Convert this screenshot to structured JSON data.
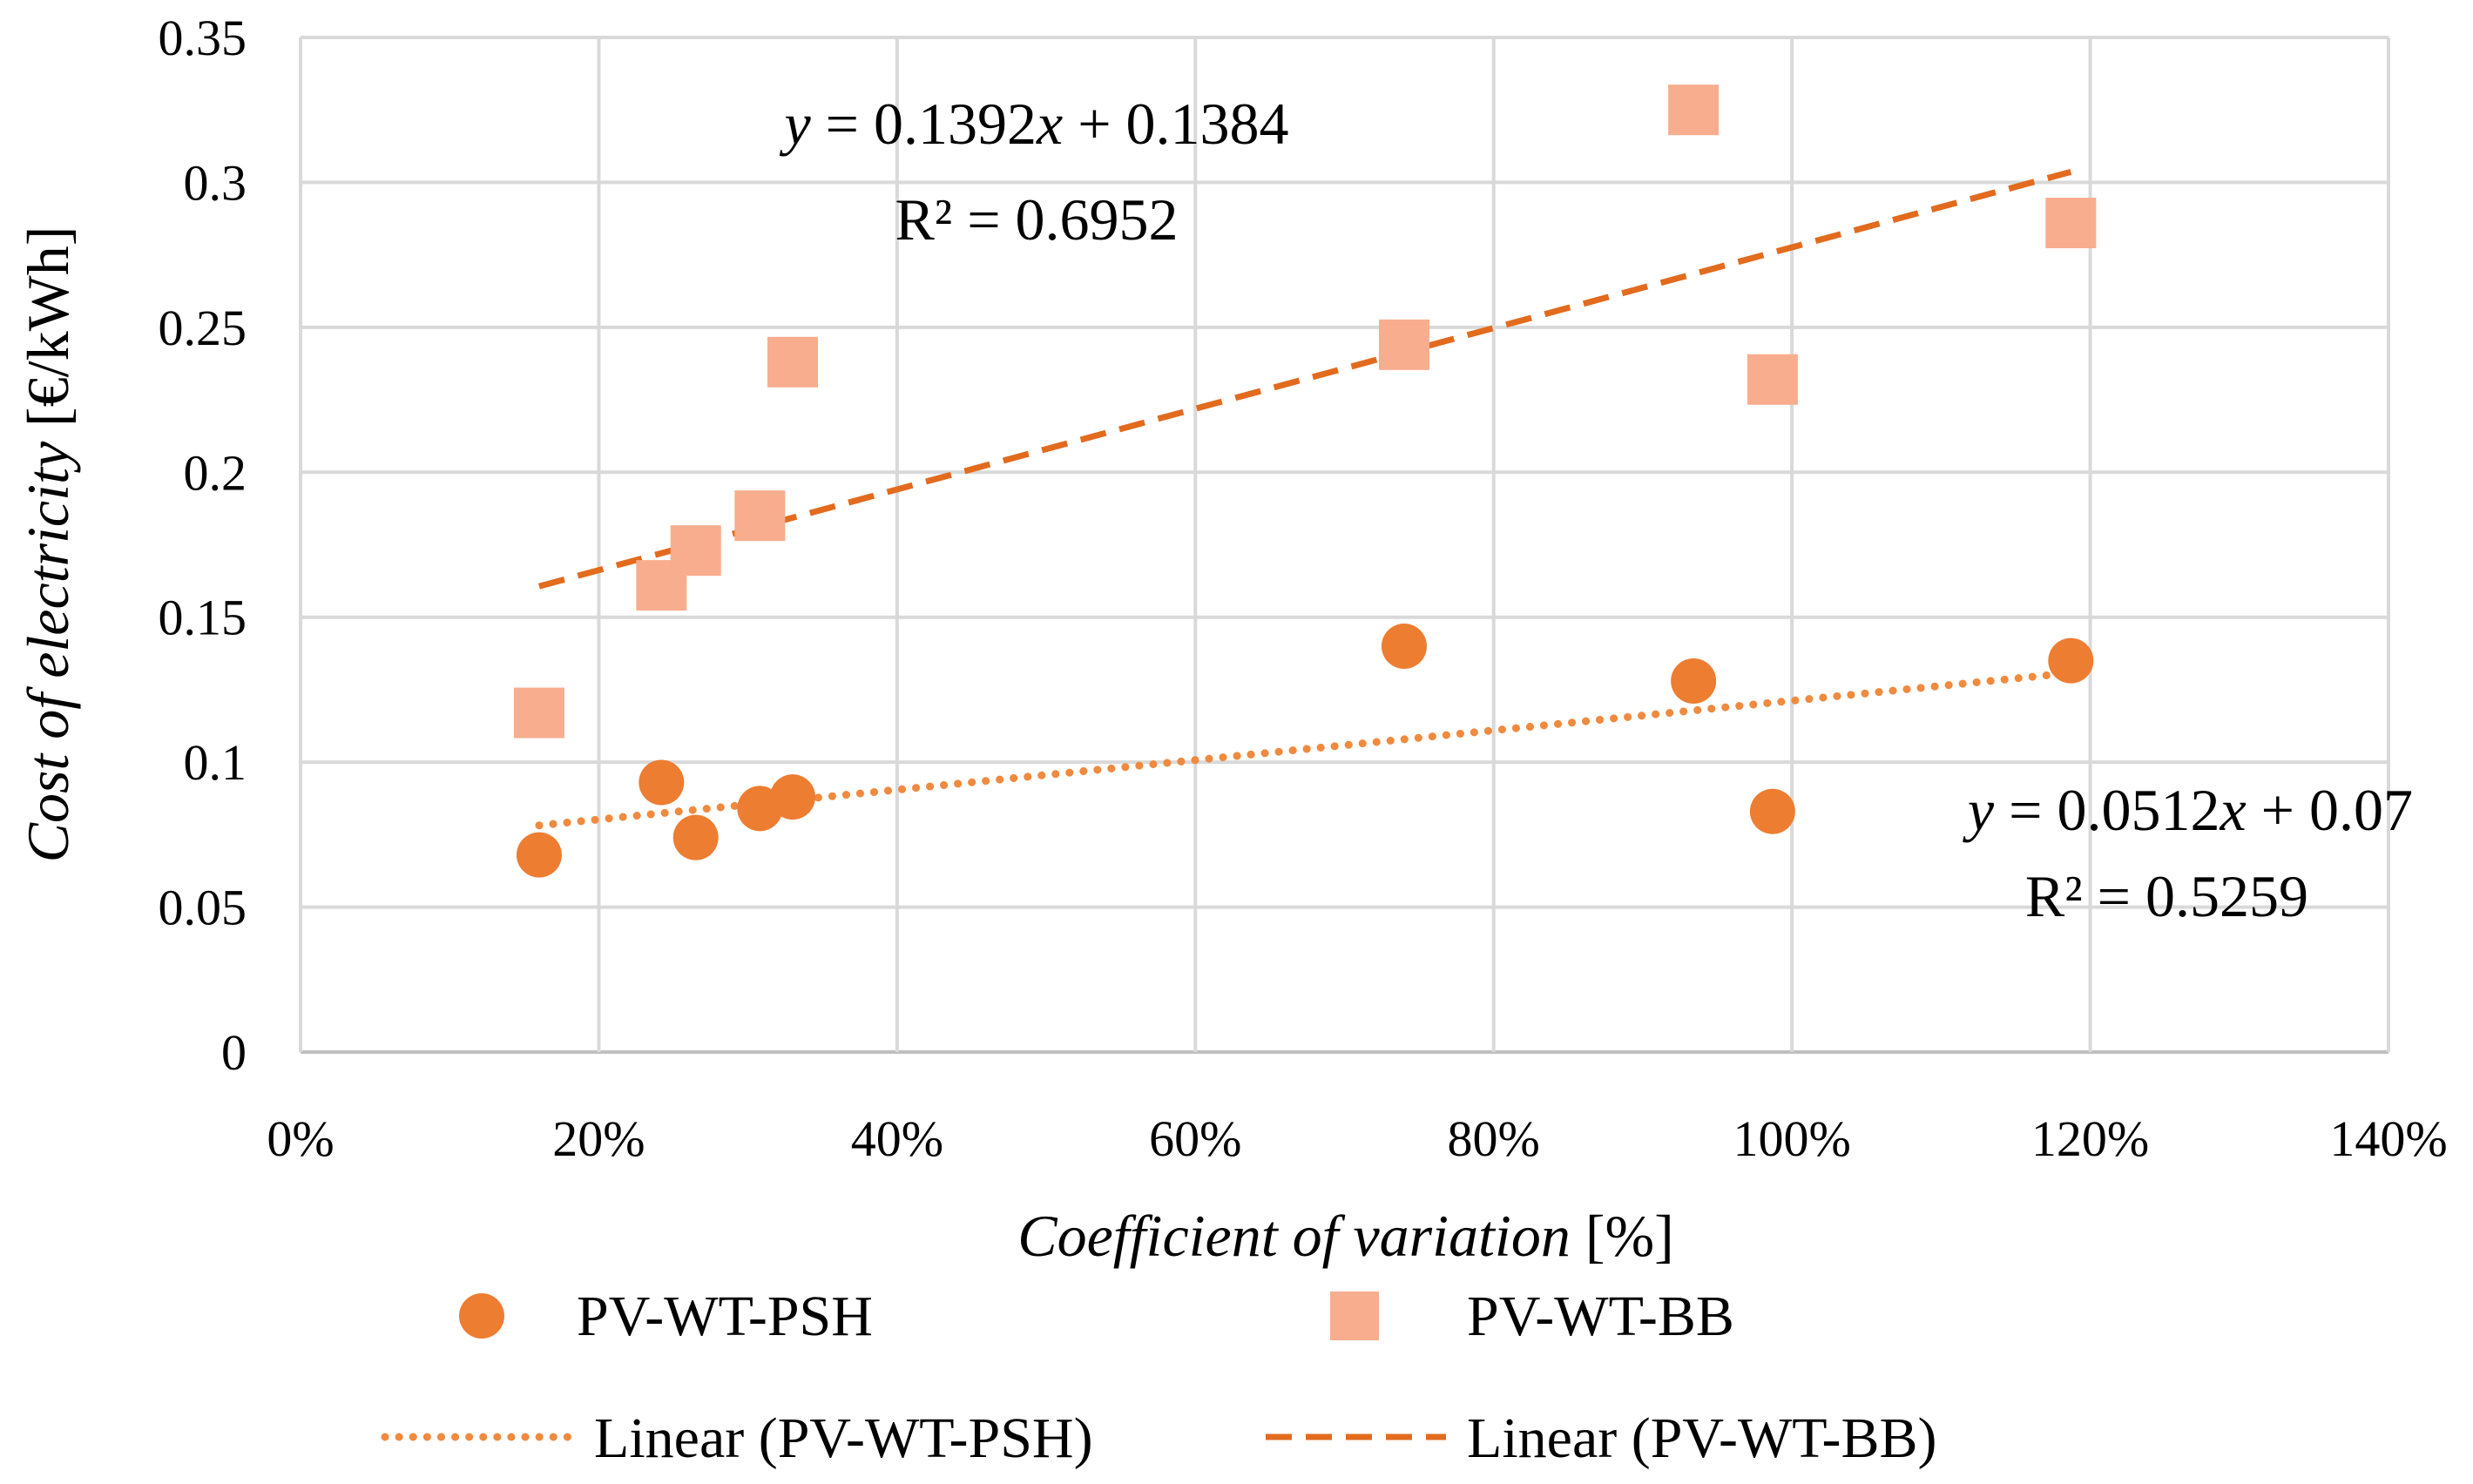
{
  "chart_data": {
    "type": "scatter",
    "xlabel": {
      "italic": "Coefficient of variation",
      "unit": " [%]"
    },
    "ylabel": {
      "italic": "Cost of electricity",
      "unit": " [€/kWh]"
    },
    "xlim": [
      0,
      1.4
    ],
    "ylim": [
      0,
      0.35
    ],
    "x_ticks": [
      {
        "value": 0,
        "label": "0%"
      },
      {
        "value": 0.2,
        "label": "20%"
      },
      {
        "value": 0.4,
        "label": "40%"
      },
      {
        "value": 0.6,
        "label": "60%"
      },
      {
        "value": 0.8,
        "label": "80%"
      },
      {
        "value": 1.0,
        "label": "100%"
      },
      {
        "value": 1.2,
        "label": "120%"
      },
      {
        "value": 1.4,
        "label": "140%"
      }
    ],
    "y_ticks": [
      {
        "value": 0,
        "label": "0"
      },
      {
        "value": 0.05,
        "label": "0.05"
      },
      {
        "value": 0.1,
        "label": "0.1"
      },
      {
        "value": 0.15,
        "label": "0.15"
      },
      {
        "value": 0.2,
        "label": "0.2"
      },
      {
        "value": 0.25,
        "label": "0.25"
      },
      {
        "value": 0.3,
        "label": "0.3"
      },
      {
        "value": 0.35,
        "label": "0.35"
      }
    ],
    "grid": true,
    "series": [
      {
        "name": "PV-WT-PSH",
        "marker": "circle",
        "color": "#ED7D31",
        "points": [
          {
            "x": 0.16,
            "y": 0.068
          },
          {
            "x": 0.242,
            "y": 0.093
          },
          {
            "x": 0.265,
            "y": 0.074
          },
          {
            "x": 0.308,
            "y": 0.084
          },
          {
            "x": 0.33,
            "y": 0.088
          },
          {
            "x": 0.74,
            "y": 0.14
          },
          {
            "x": 0.934,
            "y": 0.128
          },
          {
            "x": 0.987,
            "y": 0.083
          },
          {
            "x": 1.187,
            "y": 0.135
          }
        ],
        "trendline": {
          "name": "Linear (PV-WT-PSH)",
          "style": "dotted",
          "color": "#F08A3E",
          "slope": 0.0512,
          "intercept": 0.07,
          "x_range": [
            0.16,
            1.187
          ],
          "equation": {
            "y": "y",
            "eq1": " = 0.0512",
            "x": "x",
            "eq2": " + 0.07"
          },
          "r2": "R² = 0.5259"
        }
      },
      {
        "name": "PV-WT-BB",
        "marker": "square",
        "color": "#F8AD8E",
        "points": [
          {
            "x": 0.16,
            "y": 0.117
          },
          {
            "x": 0.242,
            "y": 0.161
          },
          {
            "x": 0.265,
            "y": 0.173
          },
          {
            "x": 0.308,
            "y": 0.185
          },
          {
            "x": 0.33,
            "y": 0.238
          },
          {
            "x": 0.74,
            "y": 0.244
          },
          {
            "x": 0.934,
            "y": 0.325
          },
          {
            "x": 0.987,
            "y": 0.232
          },
          {
            "x": 1.187,
            "y": 0.286
          }
        ],
        "trendline": {
          "name": "Linear (PV-WT-BB)",
          "style": "dashed",
          "color": "#E26B1E",
          "slope": 0.1392,
          "intercept": 0.1384,
          "x_range": [
            0.16,
            1.187
          ],
          "equation": {
            "y": "y",
            "eq1": " = 0.1392",
            "x": "x",
            "eq2": " + 0.1384"
          },
          "r2": "R² = 0.6952"
        }
      }
    ],
    "legend": {
      "position": "bottom",
      "entries": [
        "PV-WT-PSH",
        "PV-WT-BB",
        "Linear (PV-WT-PSH)",
        "Linear (PV-WT-BB)"
      ]
    }
  }
}
